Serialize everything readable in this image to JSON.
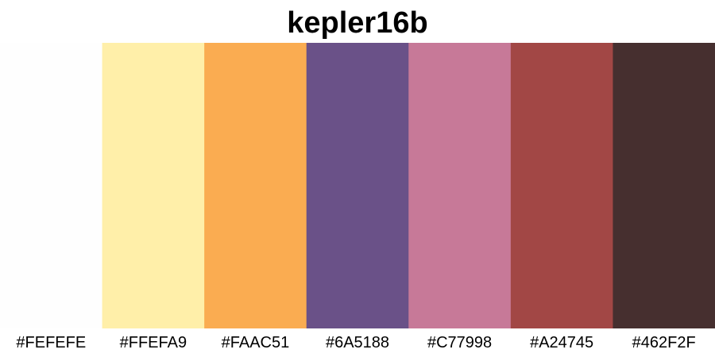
{
  "chart_data": {
    "type": "bar",
    "title": "kepler16b",
    "categories": [
      "#FEFEFE",
      "#FFEFA9",
      "#FAAC51",
      "#6A5188",
      "#C77998",
      "#A24745",
      "#462F2F"
    ],
    "values": [
      1,
      1,
      1,
      1,
      1,
      1,
      1
    ],
    "colors": [
      "#FEFEFE",
      "#FFEFA9",
      "#FAAC51",
      "#6A5188",
      "#C77998",
      "#A24745",
      "#462F2F"
    ],
    "xlabel": "",
    "ylabel": "",
    "grid": false,
    "legend": "none"
  }
}
